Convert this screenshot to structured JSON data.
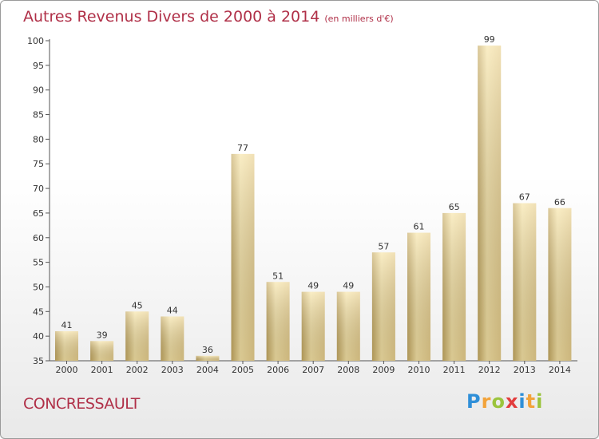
{
  "header": {
    "title": "Autres Revenus Divers de 2000 à 2014",
    "unit": "(en milliers d'€)"
  },
  "footer": {
    "commune": "CONCRESSAULT",
    "logo_letters": [
      "P",
      "r",
      "o",
      "x",
      "i",
      "t",
      "i"
    ],
    "logo_colors": [
      "#2f8fd8",
      "#f2a33a",
      "#9bc43d",
      "#e23d3d",
      "#2f8fd8",
      "#f2a33a",
      "#9bc43d"
    ]
  },
  "colors": {
    "bar_light": "#f7e4a6",
    "bar_dark": "#c6aa62",
    "text": "#333333",
    "accent": "#b03048"
  },
  "chart_data": {
    "type": "bar",
    "title": "Autres Revenus Divers de 2000 à 2014",
    "xlabel": "",
    "ylabel": "",
    "categories": [
      "2000",
      "2001",
      "2002",
      "2003",
      "2004",
      "2005",
      "2006",
      "2007",
      "2008",
      "2009",
      "2010",
      "2011",
      "2012",
      "2013",
      "2014"
    ],
    "values": [
      41,
      39,
      45,
      44,
      36,
      77,
      51,
      49,
      49,
      57,
      61,
      65,
      99,
      67,
      66
    ],
    "ylim": [
      35,
      100
    ],
    "yticks": [
      35,
      40,
      45,
      50,
      55,
      60,
      65,
      70,
      75,
      80,
      85,
      90,
      95,
      100
    ],
    "grid": false,
    "legend": "none"
  }
}
